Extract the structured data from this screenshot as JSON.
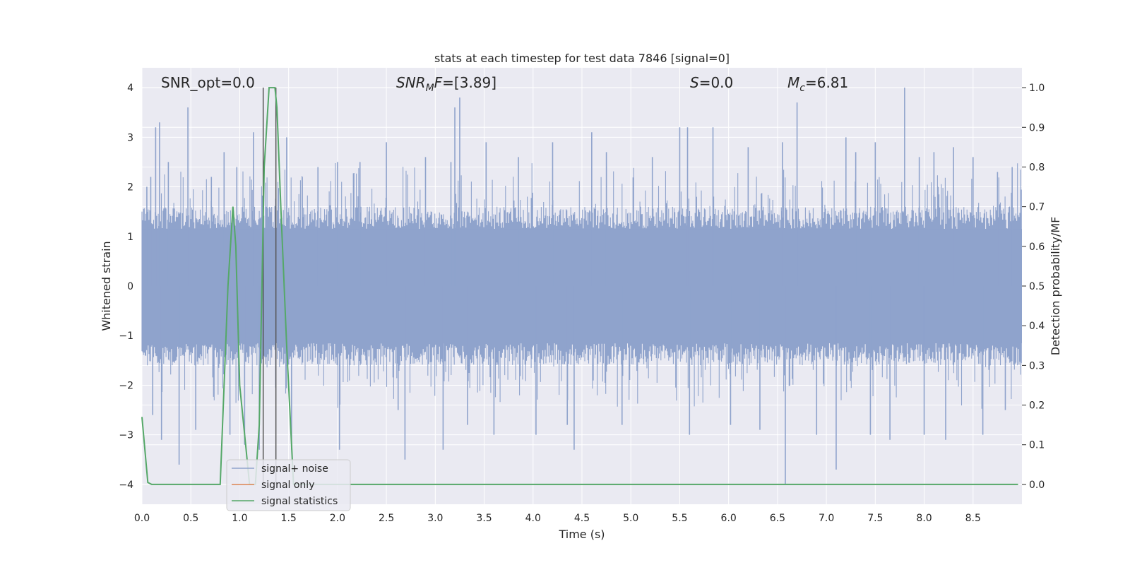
{
  "chart_data": {
    "type": "line",
    "title": "stats at each timestep for test data 7846 [signal=0]",
    "xlabel": "Time (s)",
    "ylabel": "Whitened strain",
    "ylabel_right": "Detection probability/MF",
    "xlim": [
      0,
      9.0
    ],
    "ylim": [
      -4.4,
      4.4
    ],
    "ylim_right": [
      -0.05,
      1.05
    ],
    "xticks": [
      "0.0",
      "0.5",
      "1.0",
      "1.5",
      "2.0",
      "2.5",
      "3.0",
      "3.5",
      "4.0",
      "4.5",
      "5.0",
      "5.5",
      "6.0",
      "6.5",
      "7.0",
      "7.5",
      "8.0",
      "8.5"
    ],
    "yticks": [
      "4",
      "3",
      "2",
      "1",
      "0",
      "−1",
      "−2",
      "−3",
      "−4"
    ],
    "yticks_right": [
      "1.0",
      "0.9",
      "0.8",
      "0.7",
      "0.6",
      "0.5",
      "0.4",
      "0.3",
      "0.2",
      "0.1",
      "0.0"
    ],
    "grid": true,
    "legend_position": "lower-left",
    "annotations": {
      "snr_opt": "SNR_opt=0.0",
      "snr_mf_main": "SNR",
      "snr_mf_sub": "M",
      "snr_mf_mid": "F",
      "snr_mf_rest": "=[3.89]",
      "s_main": "S",
      "s_rest": "=0.0",
      "mc_main": "M",
      "mc_sub": "c",
      "mc_rest": "=6.81"
    },
    "vlines_x": [
      1.24,
      1.37
    ],
    "series": [
      {
        "name": "signal+ noise",
        "color": "#8fa3cc",
        "axis": "left",
        "envelope": {
          "typical_upper": 1.6,
          "typical_lower": -1.6
        },
        "spikes": [
          {
            "x": 0.05,
            "y": 2.0
          },
          {
            "x": 0.09,
            "y": 2.2
          },
          {
            "x": 0.11,
            "y": -2.6
          },
          {
            "x": 0.14,
            "y": 3.2
          },
          {
            "x": 0.18,
            "y": 3.3
          },
          {
            "x": 0.2,
            "y": -3.1
          },
          {
            "x": 0.27,
            "y": 2.5
          },
          {
            "x": 0.38,
            "y": -3.6
          },
          {
            "x": 0.47,
            "y": 3.6
          },
          {
            "x": 0.55,
            "y": -2.9
          },
          {
            "x": 0.71,
            "y": 2.2
          },
          {
            "x": 0.84,
            "y": 2.7
          },
          {
            "x": 0.9,
            "y": -3.0
          },
          {
            "x": 0.97,
            "y": 2.4
          },
          {
            "x": 1.05,
            "y": -3.2
          },
          {
            "x": 1.14,
            "y": 3.1
          },
          {
            "x": 1.2,
            "y": -3.3
          },
          {
            "x": 1.48,
            "y": 3.0
          },
          {
            "x": 1.53,
            "y": -3.3
          },
          {
            "x": 1.64,
            "y": 2.2
          },
          {
            "x": 1.8,
            "y": 2.4
          },
          {
            "x": 2.0,
            "y": 2.5
          },
          {
            "x": 2.02,
            "y": -3.3
          },
          {
            "x": 2.23,
            "y": 2.5
          },
          {
            "x": 2.5,
            "y": 2.9
          },
          {
            "x": 2.62,
            "y": -2.5
          },
          {
            "x": 2.69,
            "y": -3.5
          },
          {
            "x": 2.9,
            "y": 2.6
          },
          {
            "x": 3.08,
            "y": -3.3
          },
          {
            "x": 3.16,
            "y": 2.5
          },
          {
            "x": 3.2,
            "y": 3.6
          },
          {
            "x": 3.25,
            "y": 3.8
          },
          {
            "x": 3.33,
            "y": -2.8
          },
          {
            "x": 3.52,
            "y": 2.9
          },
          {
            "x": 3.6,
            "y": -3.0
          },
          {
            "x": 3.85,
            "y": 2.6
          },
          {
            "x": 4.03,
            "y": -3.0
          },
          {
            "x": 4.2,
            "y": 2.9
          },
          {
            "x": 4.35,
            "y": -2.8
          },
          {
            "x": 4.42,
            "y": -3.3
          },
          {
            "x": 4.6,
            "y": 3.1
          },
          {
            "x": 4.75,
            "y": 2.7
          },
          {
            "x": 4.91,
            "y": -2.8
          },
          {
            "x": 5.22,
            "y": 2.6
          },
          {
            "x": 5.5,
            "y": 3.2
          },
          {
            "x": 5.58,
            "y": 3.2
          },
          {
            "x": 5.6,
            "y": -3.0
          },
          {
            "x": 5.84,
            "y": 3.2
          },
          {
            "x": 6.02,
            "y": -2.8
          },
          {
            "x": 6.2,
            "y": 2.8
          },
          {
            "x": 6.32,
            "y": -2.9
          },
          {
            "x": 6.55,
            "y": 2.9
          },
          {
            "x": 6.58,
            "y": -4.0
          },
          {
            "x": 6.7,
            "y": 3.7
          },
          {
            "x": 6.9,
            "y": -3.0
          },
          {
            "x": 7.1,
            "y": -3.7
          },
          {
            "x": 7.2,
            "y": 3.0
          },
          {
            "x": 7.3,
            "y": 2.7
          },
          {
            "x": 7.45,
            "y": -3.0
          },
          {
            "x": 7.5,
            "y": 2.9
          },
          {
            "x": 7.65,
            "y": -3.1
          },
          {
            "x": 7.8,
            "y": 4.0
          },
          {
            "x": 7.95,
            "y": 2.6
          },
          {
            "x": 8.0,
            "y": -3.0
          },
          {
            "x": 8.1,
            "y": 2.7
          },
          {
            "x": 8.22,
            "y": -3.1
          },
          {
            "x": 8.3,
            "y": 2.8
          },
          {
            "x": 8.5,
            "y": 2.6
          },
          {
            "x": 8.6,
            "y": -3.0
          },
          {
            "x": 8.75,
            "y": 2.3
          },
          {
            "x": 8.83,
            "y": -2.5
          },
          {
            "x": 8.9,
            "y": 2.4
          }
        ]
      },
      {
        "name": "signal only",
        "color": "#dd8452",
        "axis": "left",
        "points": []
      },
      {
        "name": "signal statistics",
        "color": "#55a868",
        "axis": "right",
        "x": [
          0.0,
          0.06,
          0.1,
          0.8,
          0.88,
          0.93,
          0.96,
          1.0,
          1.06,
          1.1,
          1.16,
          1.2,
          1.25,
          1.3,
          1.33,
          1.36,
          1.38,
          1.42,
          1.48,
          1.55,
          1.6,
          8.96
        ],
        "y": [
          0.17,
          0.005,
          0.0,
          0.0,
          0.5,
          0.7,
          0.6,
          0.25,
          0.1,
          0.0,
          0.0,
          0.15,
          0.8,
          1.0,
          1.0,
          1.0,
          0.95,
          0.7,
          0.35,
          0.0,
          0.0,
          0.0
        ]
      }
    ]
  }
}
